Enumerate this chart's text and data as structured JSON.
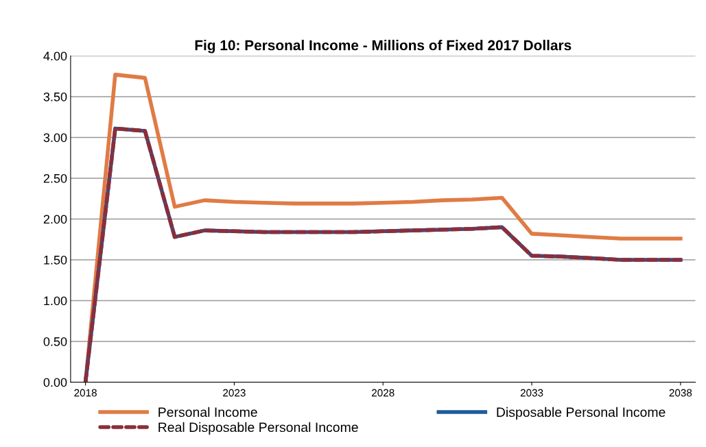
{
  "chart_data": {
    "type": "line",
    "title": "Fig 10: Personal Income - Millions of Fixed 2017 Dollars",
    "x": [
      2018,
      2019,
      2020,
      2021,
      2022,
      2023,
      2024,
      2025,
      2026,
      2027,
      2028,
      2029,
      2030,
      2031,
      2032,
      2033,
      2034,
      2035,
      2036,
      2037,
      2038
    ],
    "series": [
      {
        "name": "Personal Income",
        "color": "#e07b45",
        "line_style": "solid",
        "values": [
          0,
          3.77,
          3.73,
          2.15,
          2.23,
          2.21,
          2.2,
          2.19,
          2.19,
          2.19,
          2.2,
          2.21,
          2.23,
          2.24,
          2.26,
          1.82,
          1.8,
          1.78,
          1.76,
          1.76,
          1.76
        ]
      },
      {
        "name": "Disposable Personal Income",
        "color": "#1f5a9e",
        "line_style": "solid",
        "values": [
          0,
          3.11,
          3.08,
          1.78,
          1.86,
          1.85,
          1.84,
          1.84,
          1.84,
          1.84,
          1.85,
          1.86,
          1.87,
          1.88,
          1.9,
          1.55,
          1.54,
          1.52,
          1.5,
          1.5,
          1.5
        ]
      },
      {
        "name": "Real Disposable Personal Income",
        "color": "#8b2e3a",
        "line_style": "dashed",
        "values": [
          0,
          3.11,
          3.08,
          1.78,
          1.86,
          1.85,
          1.84,
          1.84,
          1.84,
          1.84,
          1.85,
          1.86,
          1.87,
          1.88,
          1.9,
          1.55,
          1.54,
          1.52,
          1.5,
          1.5,
          1.5
        ]
      }
    ],
    "xlim": [
      2017.5,
      2038.5
    ],
    "xticks": [
      2018,
      2023,
      2028,
      2033,
      2038
    ],
    "ylim": [
      0,
      4
    ],
    "yticks": [
      {
        "value": 0,
        "label": "0.00"
      },
      {
        "value": 0.5,
        "label": "0.50"
      },
      {
        "value": 1,
        "label": "1.00"
      },
      {
        "value": 1.5,
        "label": "1.50"
      },
      {
        "value": 2,
        "label": "2.00"
      },
      {
        "value": 2.5,
        "label": "2.50"
      },
      {
        "value": 3,
        "label": "3.00"
      },
      {
        "value": 3.5,
        "label": "3.50"
      },
      {
        "value": 4,
        "label": "4.00"
      }
    ],
    "grid": "y",
    "legend": "bottom",
    "marker": "none"
  }
}
